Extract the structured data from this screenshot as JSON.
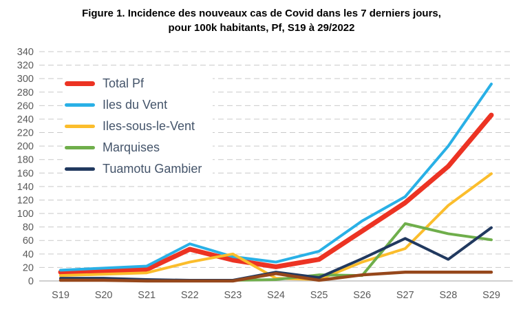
{
  "figure": {
    "title_line1": "Figure 1. Incidence des nouveaux cas de Covid dans les 7 derniers jours,",
    "title_line2": "pour 100k habitants, Pf, S19 à 29/2022"
  },
  "colors": {
    "background": "#FFFFFF",
    "title_text": "#000000",
    "grid": "#C9C9C9",
    "axis_line": "#BFBFBF",
    "tick_text": "#595959",
    "legend_text": "#44546A"
  },
  "chart_data": {
    "type": "line",
    "categories": [
      "S19",
      "S20",
      "S21",
      "S22",
      "S23",
      "S24",
      "S25",
      "S26",
      "S27",
      "S28",
      "S29"
    ],
    "y_ticks": [
      0,
      20,
      40,
      60,
      80,
      100,
      120,
      140,
      160,
      180,
      200,
      220,
      240,
      260,
      280,
      300,
      320,
      340
    ],
    "ylim": [
      0,
      340
    ],
    "grid": "horizontal dashed, solid zero axis, no vertical axis line",
    "legend_position": "upper-left inside plot, white background, no border",
    "series": [
      {
        "name": "Total Pf",
        "color": "#EC3323",
        "stroke_width": 7,
        "in_legend": true,
        "values": [
          13,
          15,
          17,
          47,
          31,
          21,
          32,
          74,
          116,
          170,
          246
        ]
      },
      {
        "name": "Iles du Vent",
        "color": "#29B0E6",
        "stroke_width": 4,
        "in_legend": true,
        "values": [
          16,
          19,
          22,
          55,
          36,
          28,
          44,
          89,
          125,
          200,
          292
        ]
      },
      {
        "name": "Iles-sous-le-Vent",
        "color": "#FBBD2C",
        "stroke_width": 4,
        "in_legend": true,
        "values": [
          8,
          10,
          12,
          28,
          40,
          4,
          2,
          28,
          48,
          112,
          159
        ]
      },
      {
        "name": "Marquises",
        "color": "#6FAE4B",
        "stroke_width": 4,
        "in_legend": true,
        "values": [
          1,
          1,
          1,
          0,
          1,
          2,
          9,
          8,
          85,
          70,
          61
        ]
      },
      {
        "name": "Tuamotu Gambier",
        "color": "#21395F",
        "stroke_width": 4,
        "in_legend": true,
        "values": [
          4,
          4,
          2,
          1,
          1,
          13,
          5,
          33,
          63,
          32,
          79
        ]
      },
      {
        "name": "unlabeled-brown-series",
        "color": "#96471B",
        "stroke_width": 4.5,
        "in_legend": false,
        "values": [
          1,
          1,
          0,
          0,
          0,
          11,
          1,
          9,
          13,
          13,
          13
        ]
      }
    ]
  }
}
